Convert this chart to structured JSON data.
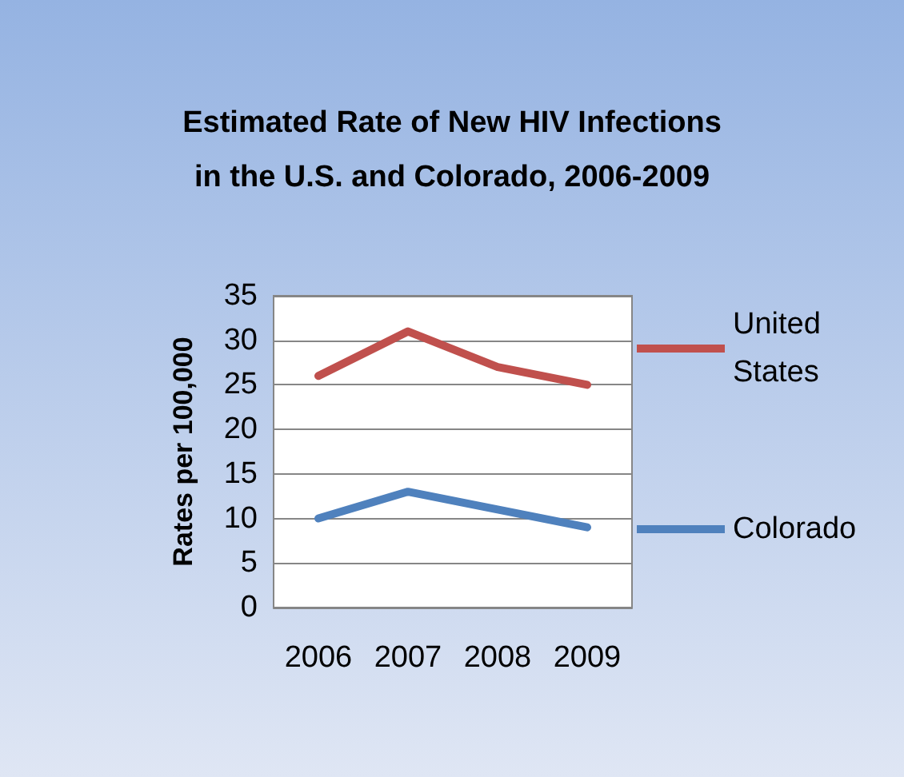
{
  "chart_data": {
    "type": "line",
    "title": "Estimated Rate of New HIV Infections in the U.S. and Colorado, 2006-2009",
    "ylabel": "Rates per 100,000",
    "categories": [
      "2006",
      "2007",
      "2008",
      "2009"
    ],
    "series": [
      {
        "name": "United States",
        "color": "#c0504d",
        "values": [
          26,
          31,
          27,
          25
        ]
      },
      {
        "name": "Colorado",
        "color": "#4f81bd",
        "values": [
          10,
          13,
          11,
          9
        ]
      }
    ],
    "ylim": [
      0,
      35
    ],
    "yticks": [
      0,
      5,
      10,
      15,
      20,
      25,
      30,
      35
    ],
    "grid": "y",
    "legend": "right",
    "marker": "none",
    "line_style": "solid"
  }
}
